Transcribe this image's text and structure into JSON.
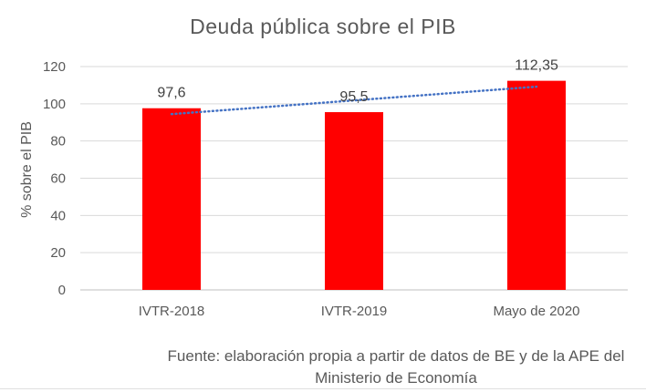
{
  "chart_data": {
    "type": "bar",
    "title": "Deuda pública sobre el PIB",
    "xlabel": "",
    "ylabel": "% sobre el PIB",
    "categories": [
      "IVTR-2018",
      "IVTR-2019",
      "Mayo de 2020"
    ],
    "values": [
      97.6,
      95.5,
      112.35
    ],
    "data_labels": [
      "97,6",
      "95,5",
      "112,35"
    ],
    "ylim": [
      0,
      120
    ],
    "yticks": [
      0,
      20,
      40,
      60,
      80,
      100,
      120
    ],
    "grid": true,
    "bar_color": "#ff0000",
    "trendline": {
      "type": "linear",
      "style": "dotted",
      "color": "#4472c4"
    }
  },
  "source_note": {
    "line1": "Fuente: elaboración propia a partir de datos de BE y de la APE del",
    "line2": "Ministerio de Economía"
  }
}
